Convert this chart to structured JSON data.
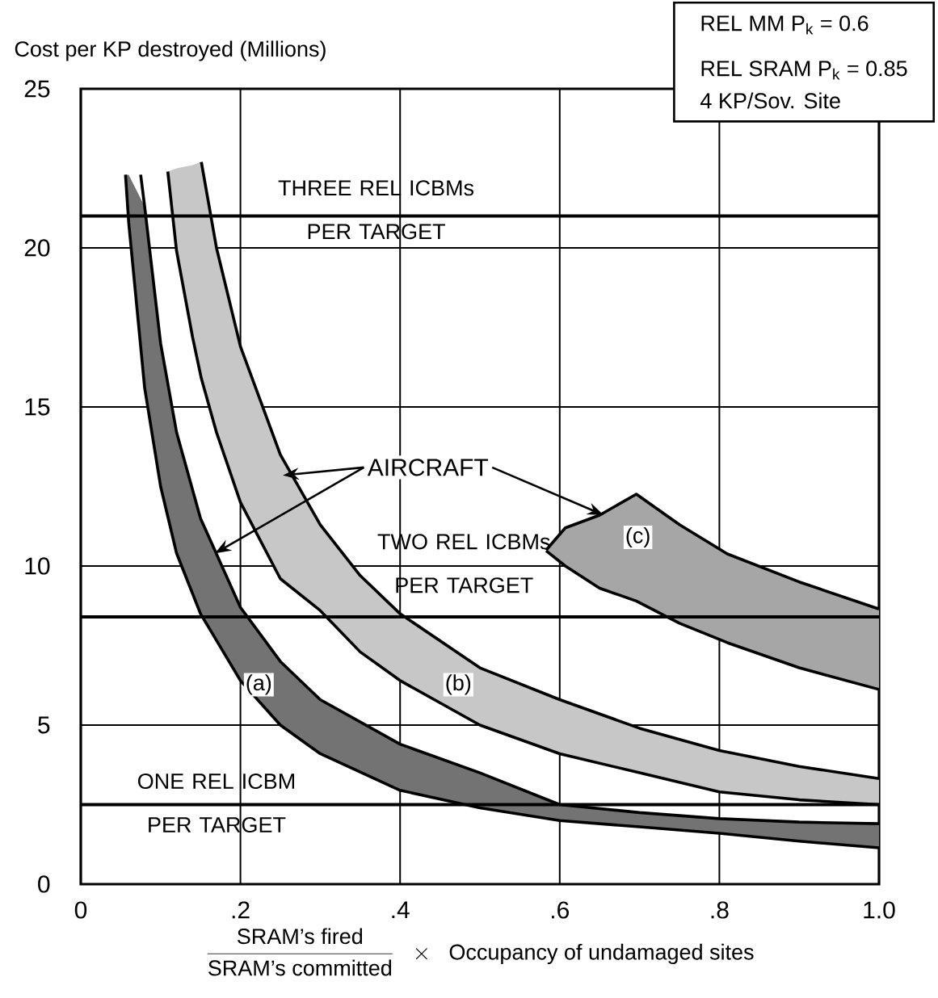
{
  "chart_data": {
    "type": "line",
    "xlabel": "\\frac{\\mbox{SRAM's fired}}{\\mbox{SRAM's committed}}\\;\\;\\times\\;\\;\\mbox{Occupancy of undamaged sites}",
    "ylabel": "Cost per KP destroyed (Millions)",
    "xlim": [
      0,
      1
    ],
    "ylim": [
      0,
      25
    ],
    "xticks": [
      0,
      {
        "value": 0.2,
        "label": ".2"
      },
      {
        "value": 0.4,
        "label": ".4"
      },
      {
        "value": 0.6,
        "label": ".6"
      },
      {
        "value": 0.8,
        "label": ".8"
      },
      {
        "value": 1,
        "label": "1.0"
      }
    ],
    "yticks": [
      0,
      5,
      10,
      15,
      20,
      25
    ],
    "grid": true,
    "series": [
      {
        "color": "#000000",
        "x": [
          0.056,
          0.06,
          0.08,
          0.1,
          0.12,
          0.15,
          0.2,
          0.25,
          0.3,
          0.4,
          0.5,
          0.6,
          0.7,
          0.8,
          0.9,
          1.0
        ],
        "values": [
          22.3,
          20.8,
          15.6,
          12.5,
          10.4,
          8.5,
          6.4,
          5.0,
          4.1,
          2.95,
          2.4,
          2.0,
          1.8,
          1.6,
          1.35,
          1.14
        ],
        "lower": [
          22.3,
          20.8,
          15.6,
          12.5,
          10.4,
          8.5,
          6.4,
          5.0,
          4.1,
          2.95,
          2.4,
          2.0,
          1.8,
          1.6,
          1.35,
          1.14
        ],
        "upper": [
          22.3,
          22.3,
          21.3,
          17.0,
          14.2,
          11.5,
          8.7,
          7.0,
          5.8,
          4.4,
          3.5,
          2.5,
          2.25,
          2.06,
          1.95,
          1.9
        ]
      },
      {
        "color": "#000000",
        "x": [
          0.075,
          0.08,
          0.1,
          0.12,
          0.15,
          0.2,
          0.25,
          0.3,
          0.4,
          0.5,
          0.6,
          0.7,
          0.8,
          0.9,
          1.0
        ],
        "values": [
          22.3,
          21.3,
          17.0,
          14.2,
          11.5,
          8.7,
          7.0,
          5.8,
          4.4,
          3.5,
          2.5,
          2.25,
          2.06,
          1.95,
          1.9
        ]
      },
      {
        "color": "#000000",
        "x": [
          0.109,
          0.12,
          0.14,
          0.151,
          0.17,
          0.2,
          0.25,
          0.3,
          0.35,
          0.4,
          0.5,
          0.6,
          0.7,
          0.8,
          0.9,
          1.0
        ],
        "values": [
          22.4,
          19.9,
          17.2,
          15.9,
          14.2,
          12.0,
          9.6,
          8.6,
          7.3,
          6.4,
          5.0,
          4.1,
          3.5,
          2.9,
          2.65,
          2.5
        ],
        "lower": [
          22.4,
          19.9,
          17.2,
          15.9,
          14.2,
          12.0,
          9.6,
          8.6,
          7.3,
          6.4,
          5.0,
          4.1,
          3.5,
          2.9,
          2.65,
          2.5
        ],
        "upper": [
          22.4,
          22.5,
          22.6,
          22.7,
          20.0,
          16.9,
          13.5,
          11.3,
          9.7,
          8.5,
          6.8,
          5.8,
          4.9,
          4.2,
          3.7,
          3.32
        ]
      },
      {
        "color": "#000000",
        "x": [
          0.151,
          0.17,
          0.2,
          0.25,
          0.3,
          0.35,
          0.4,
          0.5,
          0.6,
          0.7,
          0.8,
          0.9,
          1.0
        ],
        "values": [
          22.7,
          20.0,
          16.9,
          13.5,
          11.3,
          9.7,
          8.5,
          6.8,
          5.8,
          4.9,
          4.2,
          3.7,
          3.32
        ]
      },
      {
        "color": "#000000",
        "x": [
          0.583,
          0.607,
          0.65,
          0.696,
          0.75,
          0.81,
          0.9,
          1.0
        ],
        "values": [
          10.48,
          10.0,
          9.3,
          8.9,
          8.2,
          7.59,
          6.8,
          6.12
        ],
        "lower": [
          10.48,
          10.0,
          9.3,
          8.9,
          8.2,
          7.59,
          6.8,
          6.12
        ],
        "upper": [
          10.5,
          11.2,
          11.6,
          12.26,
          11.3,
          10.38,
          9.5,
          8.65
        ]
      },
      {
        "color": "#000000",
        "x": [
          0.583,
          0.607,
          0.65,
          0.696,
          0.75,
          0.81,
          0.9,
          1.0
        ],
        "values": [
          10.5,
          11.2,
          11.6,
          12.26,
          11.3,
          10.38,
          9.5,
          8.65
        ]
      }
    ],
    "ref_lines": [
      {
        "axis": "y",
        "value": 21,
        "label": "THREE REL ICBMs PER TARGET"
      },
      {
        "axis": "y",
        "value": 8.4,
        "label": "TWO REL ICBMs PER TARGET"
      },
      {
        "axis": "y",
        "value": 2.5,
        "label": "ONE REL ICBM PER TARGET"
      }
    ],
    "annotations": [
      "REL MM    P$_{k}$ = 0.6",
      "REL SRAM P$_{k}$ = 0.85",
      "4 KP/Sov. Site",
      "AIRCRAFT",
      {
        "text": "(a)",
        "x": 0.223,
        "y": 6.27
      },
      {
        "text": "(b)",
        "x": 0.473,
        "y": 6.27
      },
      {
        "text": "(c)",
        "x": 0.698,
        "y": 10.9
      }
    ]
  }
}
